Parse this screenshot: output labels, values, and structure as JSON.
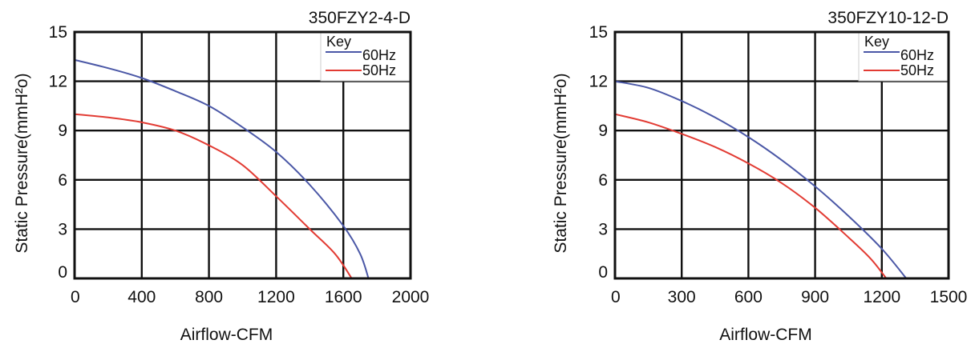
{
  "colors": {
    "series_60hz": "#4a57a6",
    "series_50hz": "#e23b33",
    "grid": "#111111",
    "background": "#ffffff"
  },
  "chart_data": [
    {
      "type": "line",
      "title": "350FZY2-4-D",
      "xlabel": "Airflow-CFM",
      "ylabel": "Static Pressure(mmH²o)",
      "xlim": [
        0,
        2000
      ],
      "ylim": [
        0,
        15
      ],
      "x_ticks": [
        "0",
        "400",
        "800",
        "1200",
        "1600",
        "2000"
      ],
      "y_ticks": [
        "0",
        "3",
        "6",
        "9",
        "12",
        "15"
      ],
      "grid": true,
      "legend": {
        "title": "Key",
        "placement": "top-right"
      },
      "series": [
        {
          "name": "60Hz",
          "color": "#4a57a6",
          "x": [
            0,
            200,
            400,
            600,
            800,
            1000,
            1200,
            1400,
            1600,
            1700,
            1750
          ],
          "y": [
            13.3,
            12.8,
            12.2,
            11.4,
            10.5,
            9.2,
            7.7,
            5.7,
            3.2,
            1.5,
            0
          ]
        },
        {
          "name": "50Hz",
          "color": "#e23b33",
          "x": [
            0,
            200,
            400,
            600,
            800,
            1000,
            1200,
            1400,
            1550,
            1650
          ],
          "y": [
            10.0,
            9.8,
            9.5,
            9.0,
            8.1,
            6.9,
            5.0,
            3.0,
            1.5,
            0
          ]
        }
      ]
    },
    {
      "type": "line",
      "title": "350FZY10-12-D",
      "xlabel": "Airflow-CFM",
      "ylabel": "Static Pressure(mmH²o)",
      "xlim": [
        0,
        1500
      ],
      "ylim": [
        0,
        15
      ],
      "x_ticks": [
        "0",
        "300",
        "600",
        "900",
        "1200",
        "1500"
      ],
      "y_ticks": [
        "0",
        "3",
        "6",
        "9",
        "12",
        "15"
      ],
      "grid": true,
      "legend": {
        "title": "Key",
        "placement": "top-right"
      },
      "series": [
        {
          "name": "60Hz",
          "color": "#4a57a6",
          "x": [
            0,
            150,
            300,
            450,
            600,
            750,
            900,
            1050,
            1200,
            1310
          ],
          "y": [
            12.0,
            11.6,
            10.8,
            9.8,
            8.6,
            7.2,
            5.6,
            3.8,
            1.8,
            0
          ]
        },
        {
          "name": "50Hz",
          "color": "#e23b33",
          "x": [
            0,
            150,
            300,
            450,
            600,
            750,
            900,
            1050,
            1150,
            1220
          ],
          "y": [
            10.0,
            9.5,
            8.8,
            8.0,
            7.0,
            5.8,
            4.3,
            2.5,
            1.2,
            0
          ]
        }
      ]
    }
  ]
}
